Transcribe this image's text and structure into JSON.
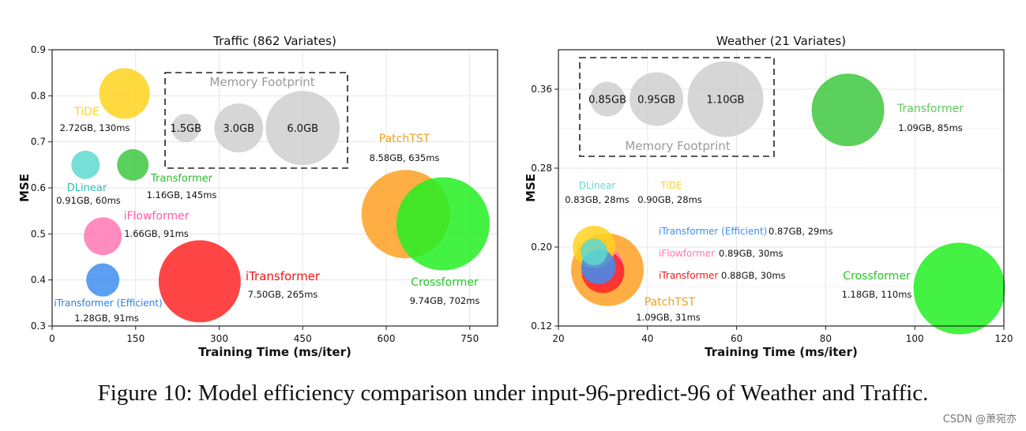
{
  "chart_data": [
    {
      "type": "scatter",
      "title": "Traffic (862 Variates)",
      "xlabel": "Training Time (ms/iter)",
      "ylabel": "MSE",
      "xlim": [
        0,
        800
      ],
      "ylim": [
        0.3,
        0.9
      ],
      "xticks": [
        0,
        150,
        300,
        450,
        600,
        750
      ],
      "yticks": [
        0.3,
        0.4,
        0.5,
        0.6,
        0.7,
        0.8,
        0.9
      ],
      "grid": true,
      "points": [
        {
          "name": "TiDE",
          "x": 130,
          "y": 0.805,
          "memory_gb": 2.72,
          "detail": "2.72GB, 130ms",
          "color": "#FFD21F"
        },
        {
          "name": "DLinear",
          "x": 60,
          "y": 0.65,
          "memory_gb": 0.91,
          "detail": "0.91GB, 60ms",
          "color": "#5ED9CF"
        },
        {
          "name": "Transformer",
          "x": 145,
          "y": 0.65,
          "memory_gb": 1.16,
          "detail": "1.16GB, 145ms",
          "color": "#3FC83F"
        },
        {
          "name": "iFlowformer",
          "x": 91,
          "y": 0.495,
          "memory_gb": 1.66,
          "detail": "1.66GB, 91ms",
          "color": "#FF77B4"
        },
        {
          "name": "iTransformer (Efficient)",
          "x": 91,
          "y": 0.4,
          "memory_gb": 1.28,
          "detail": "1.28GB, 91ms",
          "color": "#3E8EF0"
        },
        {
          "name": "iTransformer",
          "x": 265,
          "y": 0.397,
          "memory_gb": 7.5,
          "detail": "7.50GB, 265ms",
          "color": "#FF2424"
        },
        {
          "name": "PatchTST",
          "x": 635,
          "y": 0.543,
          "memory_gb": 8.58,
          "detail": "8.58GB, 635ms",
          "color": "#FFA022"
        },
        {
          "name": "Crossformer",
          "x": 702,
          "y": 0.522,
          "memory_gb": 9.74,
          "detail": "9.74GB, 702ms",
          "color": "#22F022"
        }
      ],
      "legend": {
        "title": "Memory Footprint",
        "items": [
          {
            "label": "1.5GB",
            "x": 240,
            "y": 0.73
          },
          {
            "label": "3.0GB",
            "x": 335,
            "y": 0.73
          },
          {
            "label": "6.0GB",
            "x": 450,
            "y": 0.73
          }
        ]
      }
    },
    {
      "type": "scatter",
      "title": "Weather (21 Variates)",
      "xlabel": "Training Time (ms/iter)",
      "ylabel": "MSE",
      "xlim": [
        20,
        120
      ],
      "ylim": [
        0.12,
        0.4
      ],
      "xticks": [
        20,
        40,
        60,
        80,
        100,
        120
      ],
      "yticks": [
        0.12,
        0.2,
        0.28,
        0.36
      ],
      "grid": true,
      "points": [
        {
          "name": "Transformer",
          "x": 85,
          "y": 0.339,
          "memory_gb": 1.09,
          "detail": "1.09GB, 85ms",
          "color": "#3FC83F"
        },
        {
          "name": "DLinear",
          "x": 28,
          "y": 0.195,
          "memory_gb": 0.83,
          "detail": "0.83GB, 28ms",
          "color": "#5ED9CF"
        },
        {
          "name": "TiDE",
          "x": 28,
          "y": 0.2,
          "memory_gb": 0.9,
          "detail": "0.90GB, 28ms",
          "color": "#FFD21F"
        },
        {
          "name": "iTransformer (Efficient)",
          "x": 29,
          "y": 0.18,
          "memory_gb": 0.87,
          "detail": "0.87GB, 29ms",
          "color": "#3E8EF0"
        },
        {
          "name": "iFlowformer",
          "x": 30,
          "y": 0.18,
          "memory_gb": 0.89,
          "detail": "0.89GB, 30ms",
          "color": "#FF77B4"
        },
        {
          "name": "iTransformer",
          "x": 30,
          "y": 0.175,
          "memory_gb": 0.88,
          "detail": "0.88GB, 30ms",
          "color": "#FF2424"
        },
        {
          "name": "PatchTST",
          "x": 31,
          "y": 0.177,
          "memory_gb": 1.09,
          "detail": "1.09GB, 31ms",
          "color": "#FFA022"
        },
        {
          "name": "Crossformer",
          "x": 110,
          "y": 0.158,
          "memory_gb": 1.18,
          "detail": "1.18GB, 110ms",
          "color": "#22F022"
        }
      ],
      "legend": {
        "title": "Memory Footprint",
        "items": [
          {
            "label": "0.85GB",
            "x": 31,
            "y": 0.35
          },
          {
            "label": "0.95GB",
            "x": 42,
            "y": 0.35
          },
          {
            "label": "1.10GB",
            "x": 57.5,
            "y": 0.35
          }
        ]
      }
    }
  ],
  "caption": "Figure 10: Model efficiency comparison under input-96-predict-96 of Weather and Traffic.",
  "watermark": "CSDN @萧宛亦"
}
